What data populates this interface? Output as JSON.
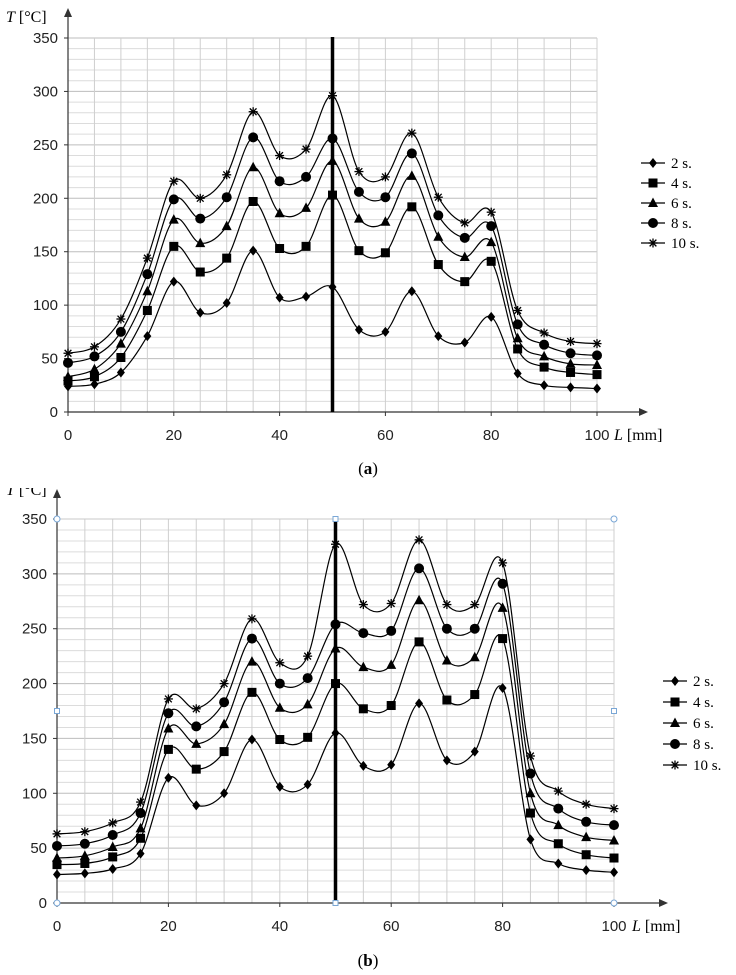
{
  "chart_data": [
    {
      "type": "line",
      "caption_open": "(",
      "caption_letter": "a",
      "caption_close": ")",
      "ylabel_var": "T",
      "ylabel_unit": " [°C]",
      "xlabel_var": "L",
      "xlabel_unit": " [mm]",
      "xlim": [
        0,
        100
      ],
      "ylim": [
        0,
        350
      ],
      "x_ticks": [
        "0",
        "20",
        "40",
        "60",
        "80",
        "100"
      ],
      "y_ticks": [
        "0",
        "50",
        "100",
        "150",
        "200",
        "250",
        "300",
        "350"
      ],
      "vertical_line_x": 50,
      "grid": true,
      "legend_position": "right",
      "x": [
        0,
        5,
        10,
        15,
        20,
        25,
        30,
        35,
        40,
        45,
        50,
        55,
        60,
        65,
        70,
        75,
        80,
        85,
        90,
        95,
        100
      ],
      "series": [
        {
          "name": "2 s.",
          "marker": "diamond",
          "values": [
            24,
            26,
            37,
            71,
            122,
            93,
            102,
            151,
            107,
            108,
            117,
            77,
            75,
            113,
            71,
            65,
            89,
            36,
            25,
            23,
            22
          ]
        },
        {
          "name": "4 s.",
          "marker": "square",
          "values": [
            29,
            33,
            51,
            95,
            155,
            131,
            144,
            197,
            153,
            155,
            203,
            151,
            149,
            192,
            138,
            122,
            141,
            59,
            42,
            37,
            35
          ]
        },
        {
          "name": "6 s.",
          "marker": "triangle",
          "values": [
            33,
            40,
            64,
            113,
            180,
            158,
            174,
            229,
            186,
            191,
            235,
            181,
            178,
            221,
            164,
            145,
            159,
            69,
            52,
            45,
            44
          ]
        },
        {
          "name": "8 s.",
          "marker": "circle",
          "values": [
            46,
            52,
            75,
            129,
            199,
            181,
            201,
            257,
            216,
            220,
            256,
            206,
            201,
            242,
            184,
            163,
            174,
            82,
            63,
            55,
            53
          ]
        },
        {
          "name": "10 s.",
          "marker": "star",
          "values": [
            55,
            61,
            87,
            144,
            216,
            200,
            222,
            281,
            240,
            246,
            296,
            225,
            220,
            261,
            201,
            177,
            187,
            95,
            74,
            66,
            64
          ]
        }
      ]
    },
    {
      "type": "line",
      "caption_open": "(",
      "caption_letter": "b",
      "caption_close": ")",
      "ylabel_var": "T",
      "ylabel_unit": " [°C]",
      "xlabel_var": "L",
      "xlabel_unit": " [mm]",
      "xlim": [
        0,
        100
      ],
      "ylim": [
        0,
        350
      ],
      "x_ticks": [
        "0",
        "20",
        "40",
        "60",
        "80",
        "100"
      ],
      "y_ticks": [
        "0",
        "50",
        "100",
        "150",
        "200",
        "250",
        "300",
        "350"
      ],
      "vertical_line_x": 50,
      "grid": true,
      "legend_position": "right",
      "x": [
        0,
        5,
        10,
        15,
        20,
        25,
        30,
        35,
        40,
        45,
        50,
        55,
        60,
        65,
        70,
        75,
        80,
        85,
        90,
        95,
        100
      ],
      "series": [
        {
          "name": "2 s.",
          "marker": "diamond",
          "values": [
            26,
            27,
            31,
            45,
            114,
            89,
            100,
            149,
            106,
            108,
            155,
            125,
            126,
            182,
            130,
            138,
            196,
            58,
            36,
            30,
            28
          ]
        },
        {
          "name": "4 s.",
          "marker": "square",
          "values": [
            35,
            36,
            42,
            59,
            140,
            122,
            138,
            192,
            149,
            151,
            200,
            177,
            180,
            238,
            185,
            190,
            241,
            82,
            54,
            44,
            41
          ]
        },
        {
          "name": "6 s.",
          "marker": "triangle",
          "values": [
            41,
            43,
            51,
            68,
            159,
            145,
            163,
            220,
            178,
            181,
            232,
            215,
            217,
            276,
            221,
            224,
            269,
            100,
            71,
            60,
            57
          ]
        },
        {
          "name": "8 s.",
          "marker": "circle",
          "values": [
            52,
            54,
            62,
            82,
            173,
            161,
            183,
            241,
            200,
            205,
            254,
            246,
            248,
            305,
            250,
            250,
            291,
            118,
            86,
            74,
            71
          ]
        },
        {
          "name": "10 s.",
          "marker": "star",
          "values": [
            63,
            65,
            73,
            92,
            186,
            177,
            200,
            259,
            219,
            225,
            327,
            272,
            273,
            331,
            272,
            272,
            310,
            134,
            102,
            90,
            86
          ]
        }
      ]
    }
  ]
}
